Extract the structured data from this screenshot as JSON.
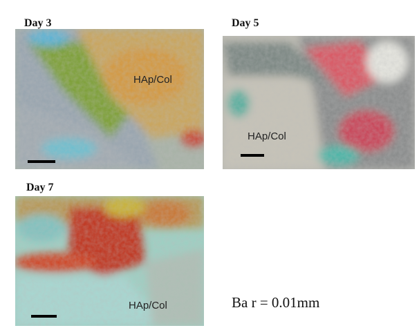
{
  "panels": [
    {
      "label": "Day 3",
      "annotation": "HAp/Col"
    },
    {
      "label": "Day 5",
      "annotation": "HAp/Col"
    },
    {
      "label": "Day 7",
      "annotation": "HAp/Col"
    }
  ],
  "scale_note": "Ba r = 0.01mm"
}
